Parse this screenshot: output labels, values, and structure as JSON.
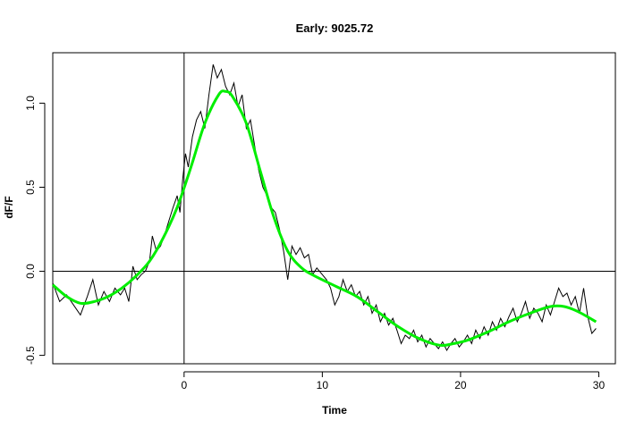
{
  "chart_data": {
    "type": "line",
    "title": "Early: 9025.72",
    "xlabel": "Time",
    "ylabel": "dF/F",
    "xlim": [
      -9.5,
      31.2
    ],
    "ylim": [
      -0.55,
      1.3
    ],
    "x_ticks": [
      0,
      10,
      20,
      30
    ],
    "y_ticks": [
      -0.5,
      0.0,
      0.5,
      1.0
    ],
    "x_tick_labels": [
      "0",
      "10",
      "20",
      "30"
    ],
    "y_tick_labels": [
      "-0.5",
      "0.0",
      "0.5",
      "1.0"
    ],
    "reference_lines": {
      "vertical_x": 0,
      "horizontal_y": 0
    },
    "grid": false,
    "legend": "none",
    "colors": {
      "raw": "#000000",
      "smooth": "#00ee00"
    },
    "series": [
      {
        "values": [
          [
            -9.5,
            -0.07
          ],
          [
            -9.0,
            -0.18
          ],
          [
            -8.5,
            -0.14
          ],
          [
            -8.0,
            -0.2
          ],
          [
            -7.5,
            -0.26
          ],
          [
            -7.0,
            -0.15
          ],
          [
            -6.6,
            -0.05
          ],
          [
            -6.2,
            -0.2
          ],
          [
            -5.8,
            -0.12
          ],
          [
            -5.4,
            -0.18
          ],
          [
            -5.0,
            -0.1
          ],
          [
            -4.6,
            -0.14
          ],
          [
            -4.3,
            -0.1
          ],
          [
            -4.0,
            -0.18
          ],
          [
            -3.7,
            0.03
          ],
          [
            -3.4,
            -0.05
          ],
          [
            -3.1,
            -0.02
          ],
          [
            -2.8,
            0.0
          ],
          [
            -2.5,
            0.06
          ],
          [
            -2.3,
            0.21
          ],
          [
            -2.0,
            0.12
          ],
          [
            -1.7,
            0.15
          ],
          [
            -1.4,
            0.22
          ],
          [
            -1.1,
            0.3
          ],
          [
            -0.8,
            0.38
          ],
          [
            -0.5,
            0.45
          ],
          [
            -0.3,
            0.35
          ],
          [
            -0.1,
            0.55
          ],
          [
            0.1,
            0.7
          ],
          [
            0.3,
            0.62
          ],
          [
            0.6,
            0.8
          ],
          [
            0.9,
            0.9
          ],
          [
            1.2,
            0.95
          ],
          [
            1.5,
            0.85
          ],
          [
            1.8,
            1.05
          ],
          [
            2.1,
            1.23
          ],
          [
            2.4,
            1.15
          ],
          [
            2.7,
            1.2
          ],
          [
            3.0,
            1.1
          ],
          [
            3.3,
            1.05
          ],
          [
            3.6,
            1.12
          ],
          [
            3.9,
            0.98
          ],
          [
            4.2,
            1.05
          ],
          [
            4.5,
            0.85
          ],
          [
            4.8,
            0.9
          ],
          [
            5.1,
            0.75
          ],
          [
            5.4,
            0.6
          ],
          [
            5.7,
            0.5
          ],
          [
            6.0,
            0.45
          ],
          [
            6.3,
            0.38
          ],
          [
            6.6,
            0.35
          ],
          [
            6.9,
            0.25
          ],
          [
            7.2,
            0.12
          ],
          [
            7.5,
            -0.05
          ],
          [
            7.8,
            0.15
          ],
          [
            8.1,
            0.1
          ],
          [
            8.4,
            0.14
          ],
          [
            8.7,
            0.08
          ],
          [
            9.0,
            0.1
          ],
          [
            9.3,
            -0.02
          ],
          [
            9.6,
            0.02
          ],
          [
            10.0,
            -0.02
          ],
          [
            10.3,
            -0.05
          ],
          [
            10.6,
            -0.1
          ],
          [
            10.9,
            -0.2
          ],
          [
            11.2,
            -0.15
          ],
          [
            11.5,
            -0.05
          ],
          [
            11.8,
            -0.12
          ],
          [
            12.1,
            -0.08
          ],
          [
            12.4,
            -0.15
          ],
          [
            12.7,
            -0.12
          ],
          [
            13.0,
            -0.2
          ],
          [
            13.3,
            -0.15
          ],
          [
            13.6,
            -0.25
          ],
          [
            13.9,
            -0.2
          ],
          [
            14.2,
            -0.3
          ],
          [
            14.5,
            -0.25
          ],
          [
            14.8,
            -0.32
          ],
          [
            15.1,
            -0.28
          ],
          [
            15.4,
            -0.35
          ],
          [
            15.7,
            -0.43
          ],
          [
            16.0,
            -0.38
          ],
          [
            16.3,
            -0.4
          ],
          [
            16.6,
            -0.35
          ],
          [
            16.9,
            -0.42
          ],
          [
            17.2,
            -0.38
          ],
          [
            17.5,
            -0.45
          ],
          [
            17.8,
            -0.4
          ],
          [
            18.1,
            -0.43
          ],
          [
            18.4,
            -0.46
          ],
          [
            18.7,
            -0.42
          ],
          [
            19.0,
            -0.47
          ],
          [
            19.3,
            -0.43
          ],
          [
            19.6,
            -0.4
          ],
          [
            19.9,
            -0.45
          ],
          [
            20.2,
            -0.42
          ],
          [
            20.5,
            -0.38
          ],
          [
            20.8,
            -0.43
          ],
          [
            21.1,
            -0.35
          ],
          [
            21.4,
            -0.4
          ],
          [
            21.7,
            -0.33
          ],
          [
            22.0,
            -0.38
          ],
          [
            22.3,
            -0.3
          ],
          [
            22.6,
            -0.35
          ],
          [
            22.9,
            -0.28
          ],
          [
            23.2,
            -0.33
          ],
          [
            23.5,
            -0.27
          ],
          [
            23.8,
            -0.22
          ],
          [
            24.1,
            -0.3
          ],
          [
            24.4,
            -0.25
          ],
          [
            24.7,
            -0.18
          ],
          [
            25.0,
            -0.28
          ],
          [
            25.3,
            -0.22
          ],
          [
            25.6,
            -0.25
          ],
          [
            25.9,
            -0.3
          ],
          [
            26.2,
            -0.2
          ],
          [
            26.5,
            -0.26
          ],
          [
            26.8,
            -0.18
          ],
          [
            27.1,
            -0.1
          ],
          [
            27.4,
            -0.15
          ],
          [
            27.7,
            -0.13
          ],
          [
            28.0,
            -0.2
          ],
          [
            28.3,
            -0.15
          ],
          [
            28.6,
            -0.25
          ],
          [
            28.9,
            -0.1
          ],
          [
            29.2,
            -0.27
          ],
          [
            29.5,
            -0.37
          ],
          [
            29.8,
            -0.34
          ]
        ]
      },
      {
        "values": [
          [
            -9.5,
            -0.08
          ],
          [
            -8.5,
            -0.15
          ],
          [
            -7.5,
            -0.19
          ],
          [
            -6.5,
            -0.18
          ],
          [
            -5.5,
            -0.15
          ],
          [
            -4.5,
            -0.1
          ],
          [
            -3.5,
            -0.03
          ],
          [
            -2.5,
            0.06
          ],
          [
            -1.5,
            0.2
          ],
          [
            -0.5,
            0.38
          ],
          [
            0.5,
            0.62
          ],
          [
            1.5,
            0.88
          ],
          [
            2.5,
            1.05
          ],
          [
            3.0,
            1.07
          ],
          [
            3.5,
            1.04
          ],
          [
            4.5,
            0.88
          ],
          [
            5.5,
            0.6
          ],
          [
            6.5,
            0.32
          ],
          [
            7.5,
            0.12
          ],
          [
            8.5,
            0.02
          ],
          [
            9.5,
            -0.03
          ],
          [
            11.0,
            -0.09
          ],
          [
            12.5,
            -0.15
          ],
          [
            14.0,
            -0.24
          ],
          [
            15.5,
            -0.33
          ],
          [
            17.0,
            -0.4
          ],
          [
            18.5,
            -0.44
          ],
          [
            19.5,
            -0.43
          ],
          [
            20.5,
            -0.41
          ],
          [
            22.0,
            -0.36
          ],
          [
            23.5,
            -0.3
          ],
          [
            25.0,
            -0.25
          ],
          [
            26.5,
            -0.21
          ],
          [
            27.5,
            -0.21
          ],
          [
            28.5,
            -0.24
          ],
          [
            29.8,
            -0.3
          ]
        ]
      }
    ]
  }
}
